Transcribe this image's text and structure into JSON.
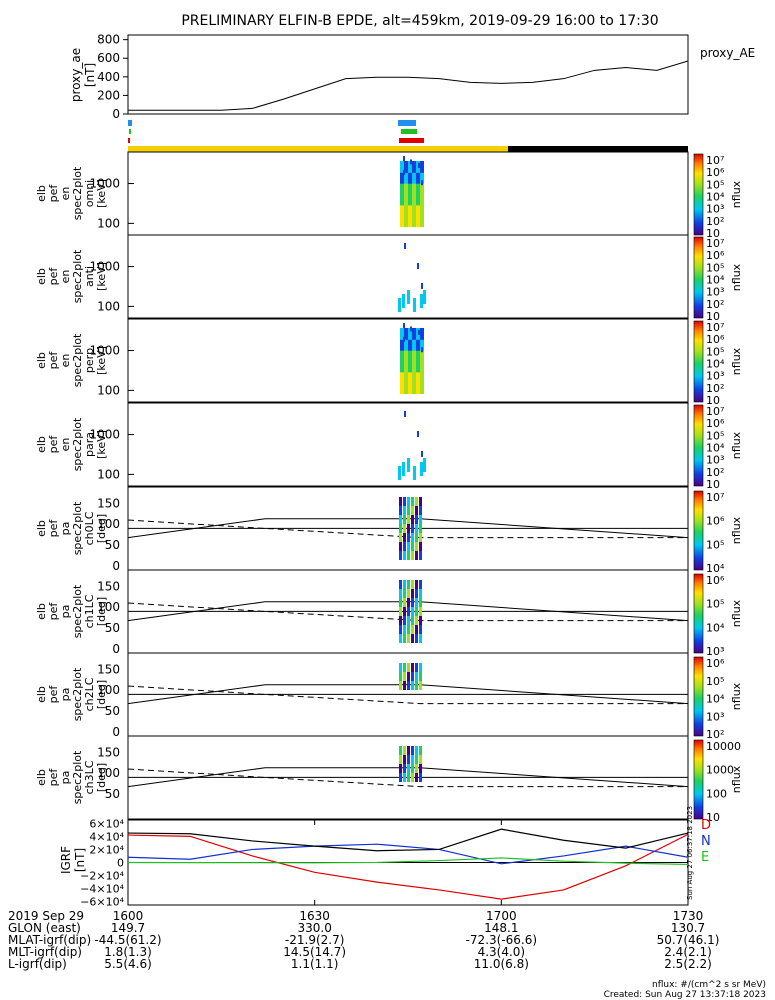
{
  "title": "PRELIMINARY ELFIN-B EPDE, alt=459km, 2019-09-29 16:00 to 17:30",
  "colors": {
    "black": "#000000",
    "red": "#e00000",
    "blue": "#1030d0",
    "green": "#20c020",
    "yellow": "#f5d000",
    "cyan": "#2090f0"
  },
  "ae_panel": {
    "ylabel": [
      "proxy_ae",
      "[nT]"
    ],
    "yticks": [
      "800",
      "600",
      "400",
      "200",
      "0"
    ],
    "series_label": "proxy_AE"
  },
  "spec_panels": [
    {
      "ylabel": [
        "elb",
        "pef",
        "en",
        "spec2plot",
        "omni",
        "[keV]"
      ],
      "yticks": [
        "1000",
        "100"
      ],
      "cbar_label": "nflux"
    },
    {
      "ylabel": [
        "elb",
        "pef",
        "en",
        "spec2plot",
        "anti",
        "[keV]"
      ],
      "yticks": [
        "1000",
        "100"
      ],
      "cbar_label": "nflux"
    },
    {
      "ylabel": [
        "elb",
        "pef",
        "en",
        "spec2plot",
        "perp",
        "[keV]"
      ],
      "yticks": [
        "1000",
        "100"
      ],
      "cbar_label": "nflux"
    },
    {
      "ylabel": [
        "elb",
        "pef",
        "en",
        "spec2plot",
        "para",
        "[keV]"
      ],
      "yticks": [
        "1000",
        "100"
      ],
      "cbar_label": "nflux"
    }
  ],
  "pa_panels": [
    {
      "ylabel": [
        "elb",
        "pef",
        "pa",
        "spec2plot",
        "ch0LC",
        "[deg]"
      ],
      "yticks": [
        "150",
        "100",
        "50",
        "0"
      ],
      "cbar_label": "nflux"
    },
    {
      "ylabel": [
        "elb",
        "pef",
        "pa",
        "spec2plot",
        "ch1LC",
        "[deg]"
      ],
      "yticks": [
        "150",
        "100",
        "50",
        "0"
      ],
      "cbar_label": "nflux"
    },
    {
      "ylabel": [
        "elb",
        "pef",
        "pa",
        "spec2plot",
        "ch2LC",
        "[deg]"
      ],
      "yticks": [
        "150",
        "100",
        "50",
        "0"
      ],
      "cbar_label": "nflux"
    },
    {
      "ylabel": [
        "elb",
        "pef",
        "pa",
        "spec2plot",
        "ch3LC",
        "[deg]"
      ],
      "yticks": [
        "150",
        "100",
        "50"
      ],
      "cbar_label": "nflux"
    }
  ],
  "colorbars": [
    {
      "labels": [
        "10⁷",
        "10⁶",
        "10⁵",
        "10⁴",
        "10³",
        "10²",
        "10"
      ]
    },
    {
      "labels": [
        "10⁷",
        "10⁶",
        "10⁵",
        "10⁴",
        "10³",
        "10²",
        "10"
      ]
    },
    {
      "labels": [
        "10⁷",
        "10⁶",
        "10⁵",
        "10⁴",
        "10³",
        "10²",
        "10"
      ]
    },
    {
      "labels": [
        "10⁷",
        "10⁶",
        "10⁵",
        "10⁴",
        "10³",
        "10²",
        "10"
      ]
    },
    {
      "labels": [
        "10⁷",
        "10⁶",
        "10⁵",
        "10⁴"
      ]
    },
    {
      "labels": [
        "10⁶",
        "10⁵",
        "10⁴",
        "10³"
      ]
    },
    {
      "labels": [
        "10⁶",
        "10⁵",
        "10⁴",
        "10³",
        "10²"
      ]
    },
    {
      "labels": [
        "10000",
        "1000",
        "100",
        "10"
      ]
    }
  ],
  "igrf_panel": {
    "ylabel": [
      "IGRF",
      "[nT]"
    ],
    "yticks": [
      "6×10⁴",
      "4×10⁴",
      "2×10⁴",
      "0",
      "−2×10⁴",
      "−4×10⁴",
      "−6×10⁴"
    ],
    "legend": [
      "D",
      "N",
      "E"
    ]
  },
  "footer": {
    "rows": [
      [
        "2019 Sep 29",
        "1600",
        "1630",
        "1700",
        "1730"
      ],
      [
        "GLON (east)",
        "149.7",
        "330.0",
        "148.1",
        "130.7"
      ],
      [
        "MLAT-igrf(dip)",
        "-44.5(61.2)",
        "-21.9(2.7)",
        "-72.3(-66.6)",
        "50.7(46.1)"
      ],
      [
        "MLT-igrf(dip)",
        "1.8(1.3)",
        "14.5(14.7)",
        "4.3(4.0)",
        "2.4(2.1)"
      ],
      [
        "L-igrf(dip)",
        "5.5(4.6)",
        "1.1(1.1)",
        "11.0(6.8)",
        "2.5(2.2)"
      ]
    ],
    "units": "nflux: #/(cm^2 s sr MeV)",
    "created": "Created: Sun Aug 27 13:37:18 2023",
    "side_stamp": "Sun Aug 27 06:37:18 2023"
  },
  "chart_data": [
    {
      "type": "line",
      "title": "PRELIMINARY ELFIN-B EPDE, alt=459km, 2019-09-29 16:00 to 17:30",
      "ylabel": "proxy_ae [nT]",
      "ylim": [
        0,
        850
      ],
      "x_unit": "minutes after 16:00",
      "series": [
        {
          "name": "proxy_AE",
          "x": [
            0,
            5,
            10,
            15,
            20,
            25,
            30,
            35,
            40,
            45,
            50,
            55,
            60,
            65,
            70,
            75,
            80,
            85,
            90
          ],
          "values": [
            40,
            40,
            40,
            40,
            60,
            160,
            270,
            380,
            395,
            395,
            380,
            340,
            330,
            340,
            380,
            470,
            500,
            470,
            570
          ]
        }
      ]
    },
    {
      "type": "heatmap",
      "ylabel": "[keV]",
      "yscale": "log",
      "ylim": [
        60,
        4000
      ],
      "x_range_min": [
        46.5,
        49.5
      ]
    },
    {
      "type": "line",
      "ylabel": "IGRF [nT]",
      "ylim": [
        -65000,
        65000
      ],
      "x_unit": "minutes after 16:00",
      "series": [
        {
          "name": "D",
          "x": [
            0,
            10,
            20,
            30,
            40,
            50,
            60,
            70,
            80,
            90
          ],
          "values": [
            42000,
            40000,
            10000,
            -15000,
            -30000,
            -42000,
            -56000,
            -42000,
            -5000,
            43000
          ]
        },
        {
          "name": "N",
          "x": [
            0,
            10,
            20,
            30,
            40,
            50,
            60,
            70,
            80,
            90
          ],
          "values": [
            8000,
            5000,
            20000,
            25000,
            28000,
            20000,
            -2000,
            10000,
            25000,
            8000
          ]
        },
        {
          "name": "E",
          "x": [
            0,
            10,
            20,
            30,
            40,
            50,
            60,
            70,
            80,
            90
          ],
          "values": [
            0,
            -200,
            -300,
            -500,
            100,
            3000,
            7000,
            2000,
            -1000,
            -3000
          ]
        },
        {
          "x": [
            0,
            10,
            20,
            30,
            40,
            50,
            60,
            70,
            80,
            90
          ],
          "values": [
            45000,
            44000,
            33000,
            25000,
            18000,
            20000,
            51000,
            34000,
            22000,
            45000
          ]
        }
      ]
    }
  ]
}
